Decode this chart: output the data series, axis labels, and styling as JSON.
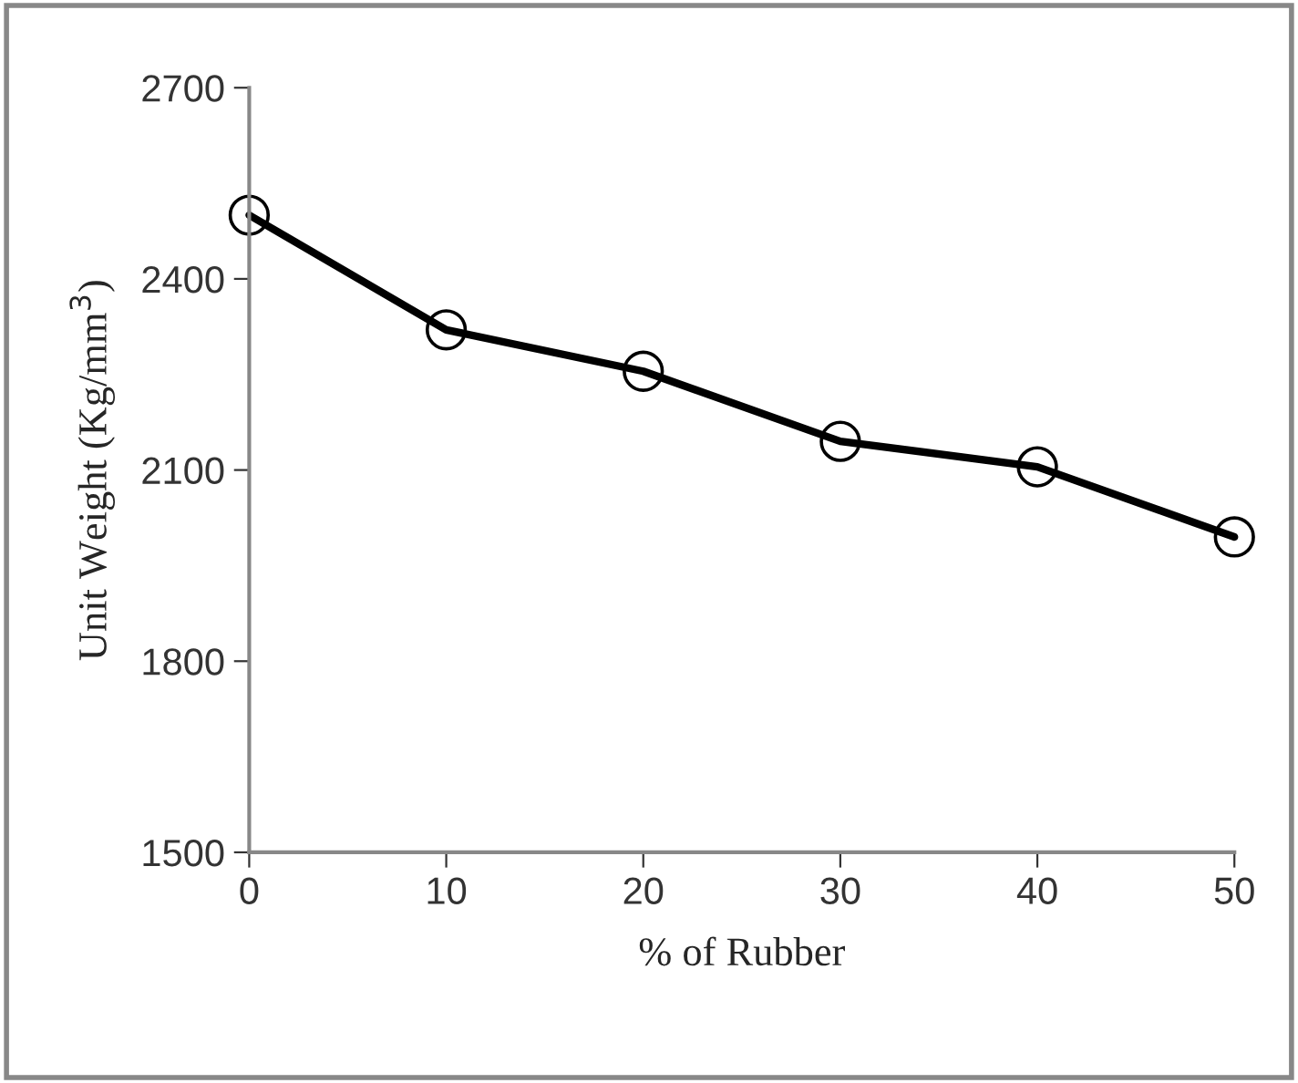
{
  "chart_data": {
    "type": "line",
    "xlabel": "% of Rubber",
    "ylabel": "Unit Weight (Kg/mm$^{3}$)",
    "x": [
      0,
      10,
      20,
      30,
      40,
      50
    ],
    "series": [
      {
        "color": "#000000",
        "values": [
          2500,
          2320,
          2255,
          2145,
          2105,
          1995
        ]
      }
    ],
    "xlim": [
      0,
      50
    ],
    "xticks": [
      0,
      10,
      20,
      30,
      40,
      50
    ],
    "ylim": [
      1500,
      2700
    ],
    "yticks": [
      1500,
      1800,
      2100,
      2400,
      2700
    ],
    "marker": "circle",
    "line_style": "solid",
    "grid": false,
    "legend": false
  }
}
